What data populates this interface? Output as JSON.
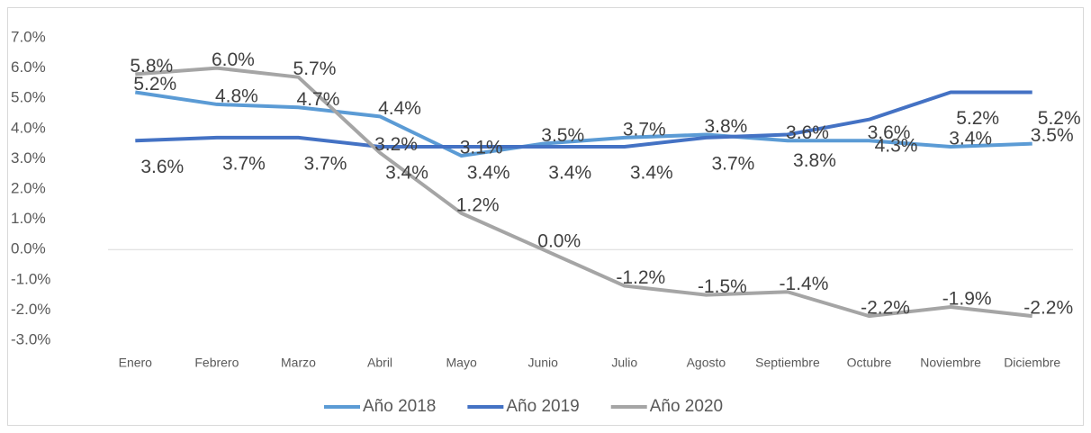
{
  "chart_data": {
    "type": "line",
    "categories": [
      "Enero",
      "Febrero",
      "Marzo",
      "Abril",
      "Mayo",
      "Junio",
      "Julio",
      "Agosto",
      "Septiembre",
      "Octubre",
      "Noviembre",
      "Diciembre"
    ],
    "series": [
      {
        "name": "Año 2018",
        "color": "#5b9bd5",
        "values": [
          5.2,
          4.8,
          4.7,
          4.4,
          3.1,
          3.5,
          3.7,
          3.8,
          3.6,
          3.6,
          3.4,
          3.5
        ],
        "value_labels": [
          "5.2%",
          "4.8%",
          "4.7%",
          "4.4%",
          "3.1%",
          "3.5%",
          "3.7%",
          "3.8%",
          "3.6%",
          "3.6%",
          "3.4%",
          "3.5%"
        ]
      },
      {
        "name": "Año 2019",
        "color": "#4472c4",
        "values": [
          3.6,
          3.7,
          3.7,
          3.4,
          3.4,
          3.4,
          3.4,
          3.7,
          3.8,
          4.3,
          5.2,
          5.2
        ],
        "value_labels": [
          "3.6%",
          "3.7%",
          "3.7%",
          "3.4%",
          "3.4%",
          "3.4%",
          "3.4%",
          "3.7%",
          "3.8%",
          "4.3%",
          "5.2%",
          "5.2%"
        ]
      },
      {
        "name": "Año 2020",
        "color": "#a5a5a5",
        "values": [
          5.8,
          6.0,
          5.7,
          3.2,
          1.2,
          0.0,
          -1.2,
          -1.5,
          -1.4,
          -2.2,
          -1.9,
          -2.2
        ],
        "value_labels": [
          "5.8%",
          "6.0%",
          "5.7%",
          "3.2%",
          "1.2%",
          "0.0%",
          "-1.2%",
          "-1.5%",
          "-1.4%",
          "-2.2%",
          "-1.9%",
          "-2.2%"
        ]
      }
    ],
    "ylim": [
      -3,
      7
    ],
    "yticks": [
      {
        "value": 7,
        "label": "7.0%"
      },
      {
        "value": 6,
        "label": "6.0%"
      },
      {
        "value": 5,
        "label": "5.0%"
      },
      {
        "value": 4,
        "label": "4.0%"
      },
      {
        "value": 3,
        "label": "3.0%"
      },
      {
        "value": 2,
        "label": "2.0%"
      },
      {
        "value": 1,
        "label": "1.0%"
      },
      {
        "value": 0,
        "label": "0.0%"
      },
      {
        "value": -1,
        "label": "-1.0%"
      },
      {
        "value": -2,
        "label": "-2.0%"
      },
      {
        "value": -3,
        "label": "-3.0%"
      }
    ],
    "legend": "bottom"
  }
}
